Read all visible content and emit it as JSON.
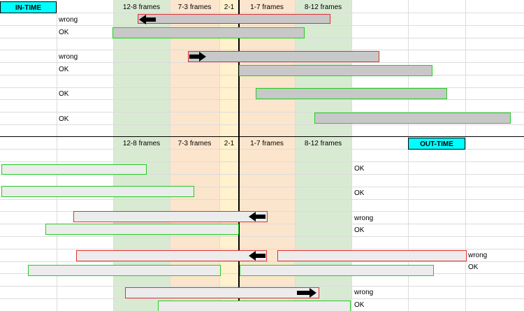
{
  "top_section": {
    "title": "IN-TIME",
    "columns": [
      "12-8 frames",
      "7-3 frames",
      "2-1",
      "1-7 frames",
      "8-12 frames"
    ],
    "rows": [
      {
        "label": "wrong",
        "status": "wrong",
        "arrow": "arrow-left-icon"
      },
      {
        "label": "OK",
        "status": "ok"
      },
      {
        "label": "wrong",
        "status": "wrong",
        "arrow": "arrow-right-icon"
      },
      {
        "label": "OK",
        "status": "ok"
      },
      {
        "label": "OK",
        "status": "ok"
      },
      {
        "label": "OK",
        "status": "ok"
      }
    ]
  },
  "bottom_section": {
    "title": "OUT-TIME",
    "columns": [
      "12-8 frames",
      "7-3 frames",
      "2-1",
      "1-7 frames",
      "8-12 frames"
    ],
    "rows": [
      {
        "label": "OK",
        "status": "ok"
      },
      {
        "label": "OK",
        "status": "ok"
      },
      {
        "label": "wrong",
        "status": "wrong",
        "arrow": "arrow-left-icon"
      },
      {
        "label": "OK",
        "status": "ok"
      },
      {
        "label": "wrong",
        "status": "wrong",
        "arrow": "arrow-left-icon"
      },
      {
        "label": "OK",
        "status": "ok"
      },
      {
        "label": "wrong",
        "status": "wrong",
        "arrow": "arrow-right-icon"
      },
      {
        "label": "OK",
        "status": "ok"
      }
    ]
  },
  "colors": {
    "zone_12_8": "#d9ead3",
    "zone_7_3": "#fce5cd",
    "zone_2_1": "#fff2cc",
    "zone_1_7": "#fce5cd",
    "zone_8_12": "#d9ead3",
    "title_cell": "#00ffff",
    "ok_border": "#22cc22",
    "wrong_border": "#e03030"
  }
}
